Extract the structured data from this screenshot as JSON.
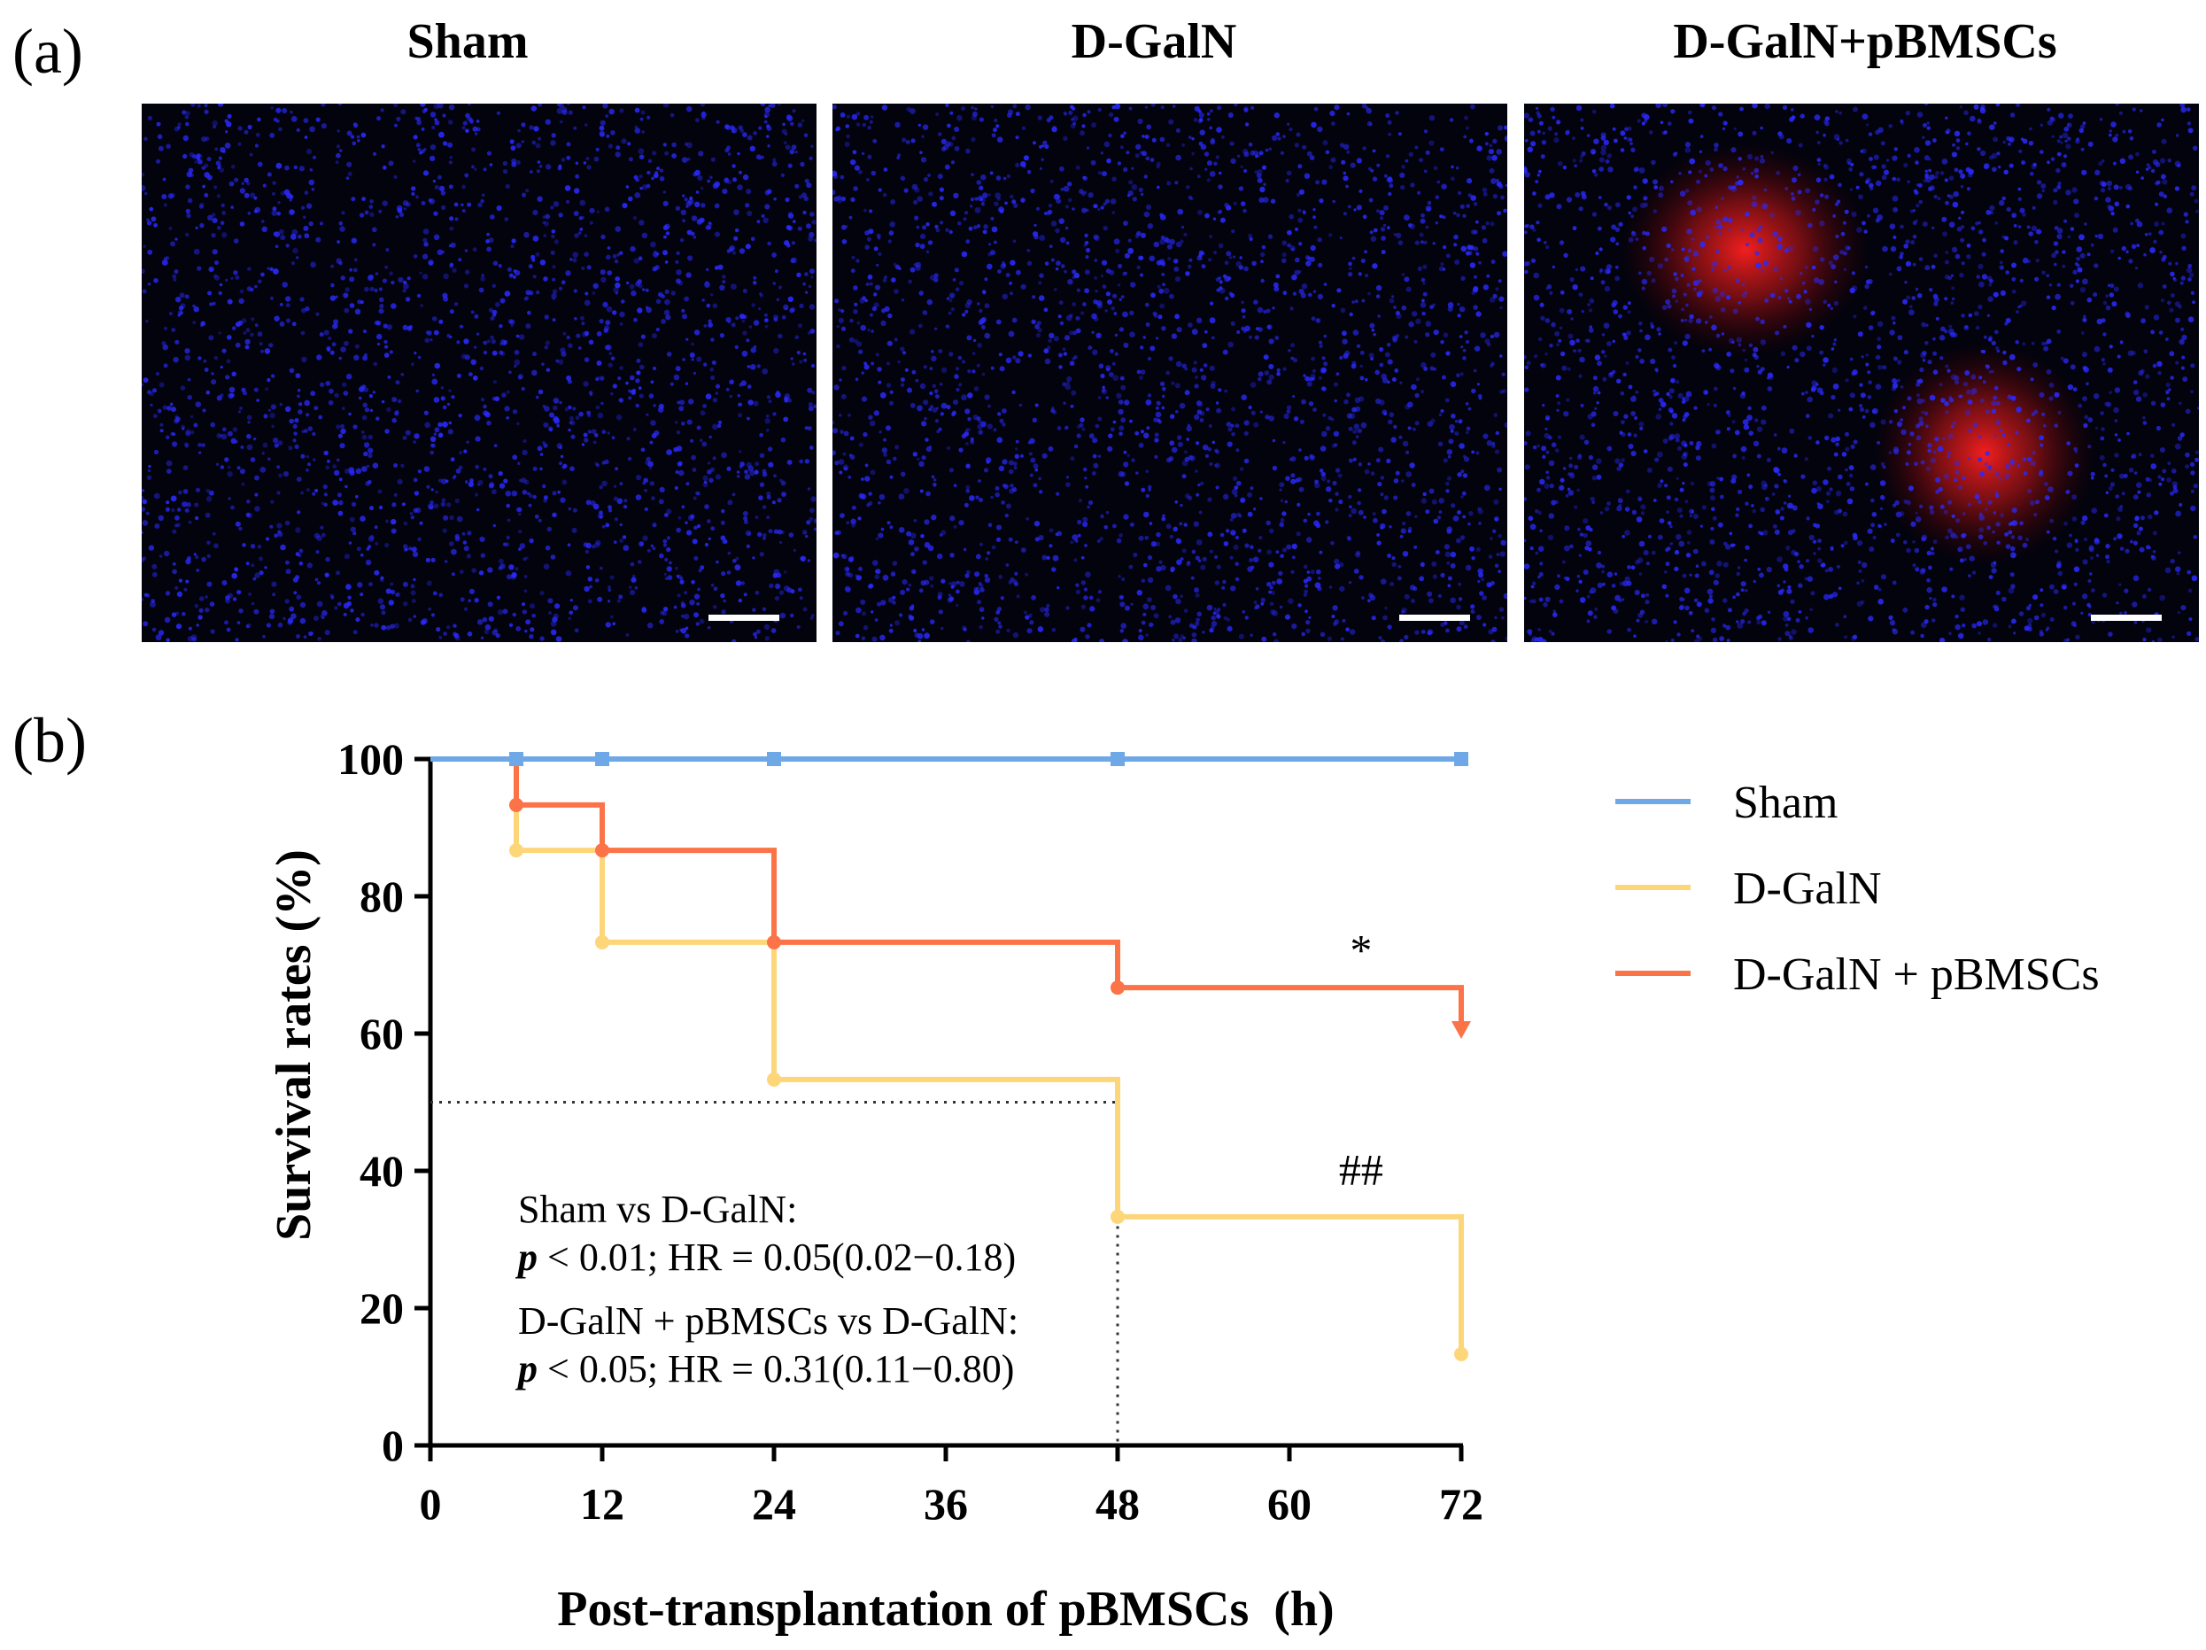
{
  "panel_a": {
    "label": "(a)",
    "images": [
      {
        "title": "Sham",
        "red_stain": false
      },
      {
        "title": "D-GalN",
        "red_stain": false
      },
      {
        "title": "D-GalN+pBMSCs",
        "red_stain": true
      }
    ],
    "colors": {
      "nuclei": "#2a2aff",
      "stain": "#ff2020",
      "scale_bar": "#ffffff"
    }
  },
  "panel_b": {
    "label": "(b)",
    "stats": [
      {
        "line1": "Sham vs D-GalN:",
        "p_symbol": "p",
        "p_text": " < 0.01; HR = 0.05(0.02−0.18)"
      },
      {
        "line1": "D-GalN + pBMSCs vs D-GalN:",
        "p_symbol": "p",
        "p_text": " < 0.05; HR = 0.31(0.11−0.80)"
      }
    ]
  },
  "chart_data": {
    "type": "line",
    "style": "kaplan-meier step",
    "xlabel": "Post-transplantation of pBMSCs  (h)",
    "ylabel": "Survival rates (%)",
    "xlim": [
      0,
      72
    ],
    "ylim": [
      0,
      100
    ],
    "xticks": [
      0,
      12,
      24,
      36,
      48,
      60,
      72
    ],
    "yticks": [
      0,
      20,
      40,
      60,
      80,
      100
    ],
    "grid": false,
    "legend_position": "right",
    "median_line": {
      "y": 50,
      "x": 48
    },
    "series": [
      {
        "name": "Sham",
        "color": "#6fa8e6",
        "points": [
          [
            0,
            100
          ],
          [
            72,
            100
          ]
        ],
        "markers": [
          [
            6,
            100
          ],
          [
            12,
            100
          ],
          [
            24,
            100
          ],
          [
            48,
            100
          ],
          [
            72,
            100
          ]
        ],
        "end_arrow": false
      },
      {
        "name": "D-GalN",
        "color": "#fdd67a",
        "points": [
          [
            0,
            100
          ],
          [
            6,
            100
          ],
          [
            6,
            86.7
          ],
          [
            12,
            86.7
          ],
          [
            12,
            73.3
          ],
          [
            24,
            73.3
          ],
          [
            24,
            53.3
          ],
          [
            48,
            53.3
          ],
          [
            48,
            33.3
          ],
          [
            72,
            33.3
          ],
          [
            72,
            13.3
          ]
        ],
        "markers": [
          [
            6,
            86.7
          ],
          [
            12,
            73.3
          ],
          [
            24,
            53.3
          ],
          [
            48,
            33.3
          ],
          [
            72,
            13.3
          ]
        ],
        "end_arrow": false
      },
      {
        "name": "D-GalN + pBMSCs",
        "color": "#fb7346",
        "points": [
          [
            6,
            100
          ],
          [
            6,
            93.3
          ],
          [
            12,
            93.3
          ],
          [
            12,
            86.7
          ],
          [
            24,
            86.7
          ],
          [
            24,
            73.3
          ],
          [
            48,
            73.3
          ],
          [
            48,
            66.7
          ],
          [
            72,
            66.7
          ],
          [
            72,
            60
          ]
        ],
        "markers": [
          [
            6,
            93.3
          ],
          [
            12,
            86.7
          ],
          [
            24,
            73.3
          ],
          [
            48,
            66.7
          ]
        ],
        "end_arrow": true
      }
    ],
    "annotations": [
      {
        "text": "*",
        "x": 65,
        "y": 70
      },
      {
        "text": "##",
        "x": 65,
        "y": 38
      }
    ]
  }
}
